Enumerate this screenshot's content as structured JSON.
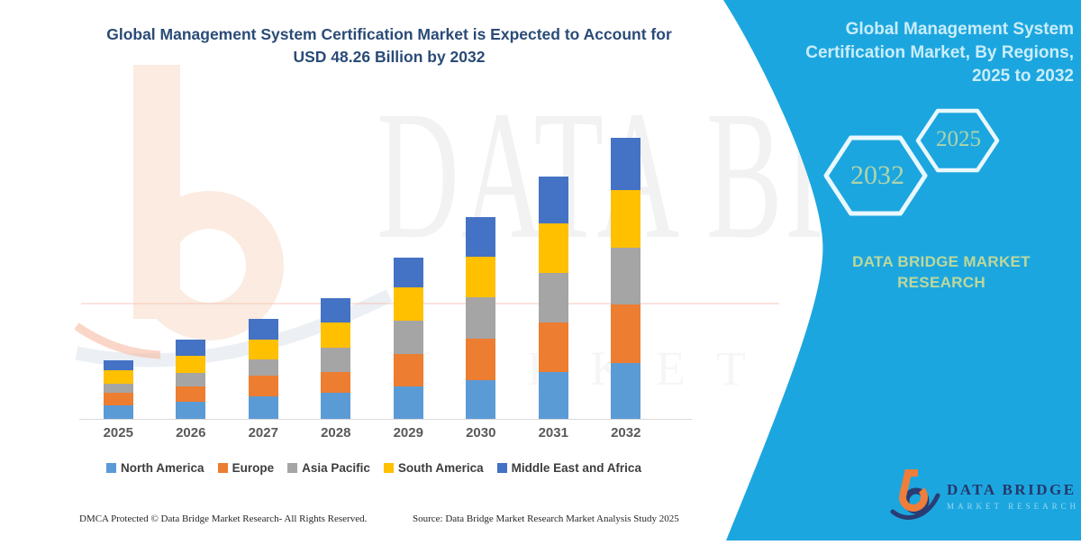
{
  "header": {
    "line1": "Global Management System Certification Market is Expected to Account for",
    "line2": "USD 48.26 Billion by 2032"
  },
  "chart_data": {
    "type": "bar",
    "subtype": "stacked-vertical",
    "title": "Global Management System Certification Market is Expected to Account for USD 48.26 Billion by 2032",
    "unit": "USD Billion",
    "categories": [
      "2025",
      "2026",
      "2027",
      "2028",
      "2029",
      "2030",
      "2031",
      "2032"
    ],
    "series": [
      {
        "name": "North America",
        "color": "#5B9BD5",
        "values": [
          2.4,
          3.0,
          3.9,
          4.5,
          5.5,
          6.7,
          8.0,
          9.6
        ]
      },
      {
        "name": "Europe",
        "color": "#ED7D31",
        "values": [
          2.1,
          2.5,
          3.5,
          3.6,
          5.7,
          7.0,
          8.5,
          10.0
        ]
      },
      {
        "name": "Asia Pacific",
        "color": "#A5A5A5",
        "values": [
          1.5,
          2.4,
          2.8,
          4.1,
          5.6,
          7.2,
          8.5,
          9.8
        ]
      },
      {
        "name": "South America",
        "color": "#FFC000",
        "values": [
          2.3,
          2.9,
          3.5,
          4.4,
          5.7,
          7.0,
          8.5,
          9.8
        ]
      },
      {
        "name": "Middle East and Africa",
        "color": "#4472C4",
        "values": [
          1.8,
          2.8,
          3.5,
          4.1,
          5.1,
          6.7,
          8.0,
          9.06
        ]
      }
    ],
    "totals_by_year": [
      10.1,
      13.6,
      17.2,
      20.7,
      27.6,
      34.6,
      41.5,
      48.26
    ],
    "ylim": [
      0,
      50
    ],
    "grid": false,
    "legend_position": "bottom",
    "xlabel": "",
    "ylabel": ""
  },
  "panel": {
    "accent": "#1CA6DF",
    "title": "Global Management System\nCertification Market, By Regions,\n2025 to 2032",
    "hexagons": [
      "2032",
      "2025"
    ],
    "brand": "DATA BRIDGE MARKET\nRESEARCH"
  },
  "watermark": {
    "line1": "DATA BRIDGE",
    "line2": "MARKET RESEARCH"
  },
  "logo": {
    "name": "DATA BRIDGE",
    "sub": "MARKET RESEARCH"
  },
  "footer": {
    "left": "DMCA Protected © Data Bridge Market Research-  All Rights Reserved.",
    "source": "Source: Data Bridge Market Research  Market Analysis Study 2025"
  }
}
